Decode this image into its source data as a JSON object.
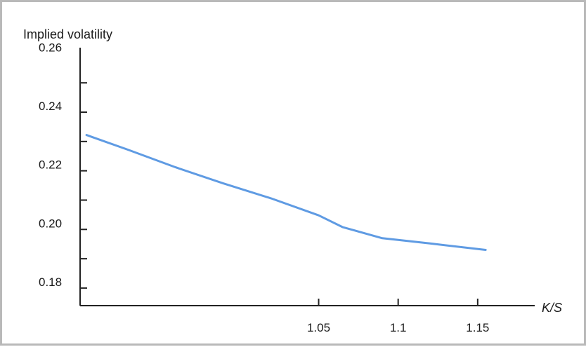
{
  "chart_data": {
    "type": "line",
    "ylabel": "Implied volatility",
    "xlabel": "K/S",
    "xlim": [
      0.9,
      1.2
    ],
    "ylim": [
      0.174,
      0.262
    ],
    "x_ticks": [
      {
        "value": 1.05,
        "label": "1.05"
      },
      {
        "value": 1.1,
        "label": "1.1"
      },
      {
        "value": 1.15,
        "label": "1.15"
      }
    ],
    "y_ticks": [
      {
        "value": 0.18,
        "label": "0.18"
      },
      {
        "value": 0.2,
        "label": "0.20"
      },
      {
        "value": 0.22,
        "label": "0.22"
      },
      {
        "value": 0.24,
        "label": "0.24"
      },
      {
        "value": 0.26,
        "label": "0.26"
      }
    ],
    "y_ticks_all": [
      0.18,
      0.19,
      0.2,
      0.21,
      0.22,
      0.23,
      0.24,
      0.25
    ],
    "grid": false,
    "legend": "none",
    "series": [
      {
        "color": "#5f9be3",
        "x": [
          0.904,
          0.93,
          0.96,
          0.99,
          1.02,
          1.05,
          1.065,
          1.09,
          1.12,
          1.155
        ],
        "y": [
          0.2322,
          0.2272,
          0.2212,
          0.2157,
          0.2106,
          0.2048,
          0.2008,
          0.197,
          0.1952,
          0.193
        ]
      }
    ]
  }
}
